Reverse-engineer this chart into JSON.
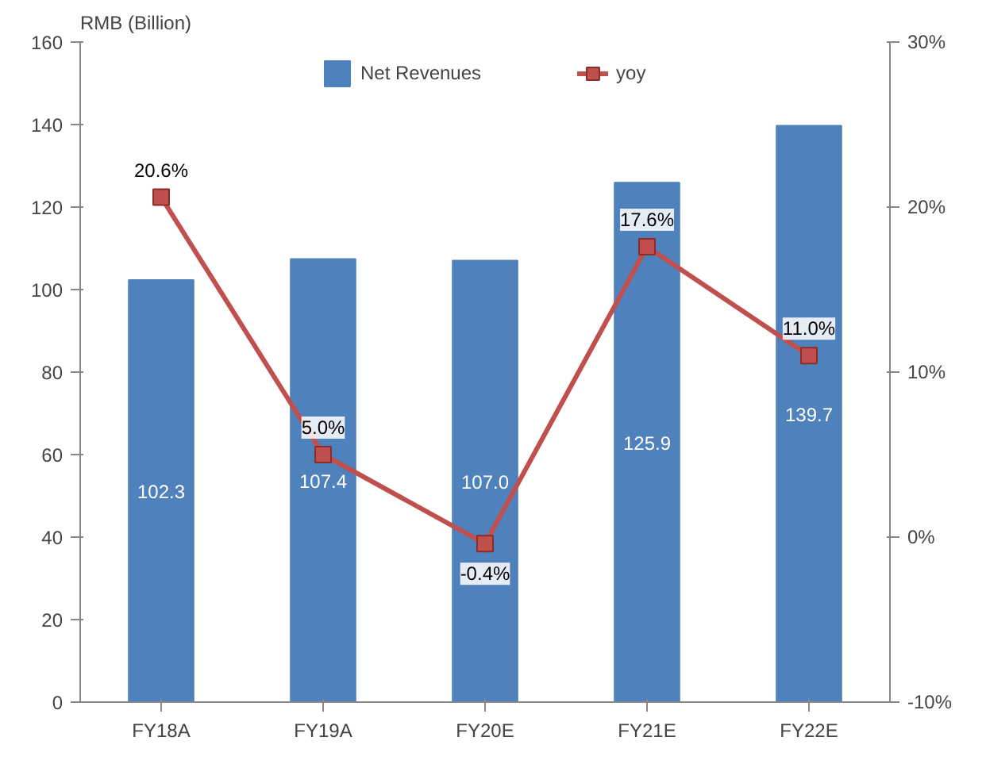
{
  "chart_data": {
    "type": "bar",
    "ylabel": "RMB (Billion)",
    "categories": [
      "FY18A",
      "FY19A",
      "FY20E",
      "FY21E",
      "FY22E"
    ],
    "series": [
      {
        "name": "Net Revenues",
        "color": "#4f81bd",
        "values": [
          102.3,
          107.4,
          107.0,
          125.9,
          139.7
        ],
        "value_labels": [
          "102.3",
          "107.4",
          "107.0",
          "125.9",
          "139.7"
        ]
      },
      {
        "name": "yoy",
        "type": "line",
        "axis": "y2",
        "color": "#c0504d",
        "marker": "square",
        "values": [
          20.6,
          5.0,
          -0.4,
          17.6,
          11.0
        ],
        "value_labels": [
          "20.6%",
          "5.0%",
          "-0.4%",
          "17.6%",
          "11.0%"
        ]
      }
    ],
    "ylim": [
      0,
      160
    ],
    "yticks": [
      0,
      20,
      40,
      60,
      80,
      100,
      120,
      140,
      160
    ],
    "y2lim": [
      -10,
      30
    ],
    "y2ticks": [
      {
        "value": -10,
        "label": "-10%"
      },
      {
        "value": 0,
        "label": "0%"
      },
      {
        "value": 10,
        "label": "10%"
      },
      {
        "value": 20,
        "label": "20%"
      },
      {
        "value": 30,
        "label": "30%"
      }
    ],
    "legend": "top",
    "grid": false
  }
}
